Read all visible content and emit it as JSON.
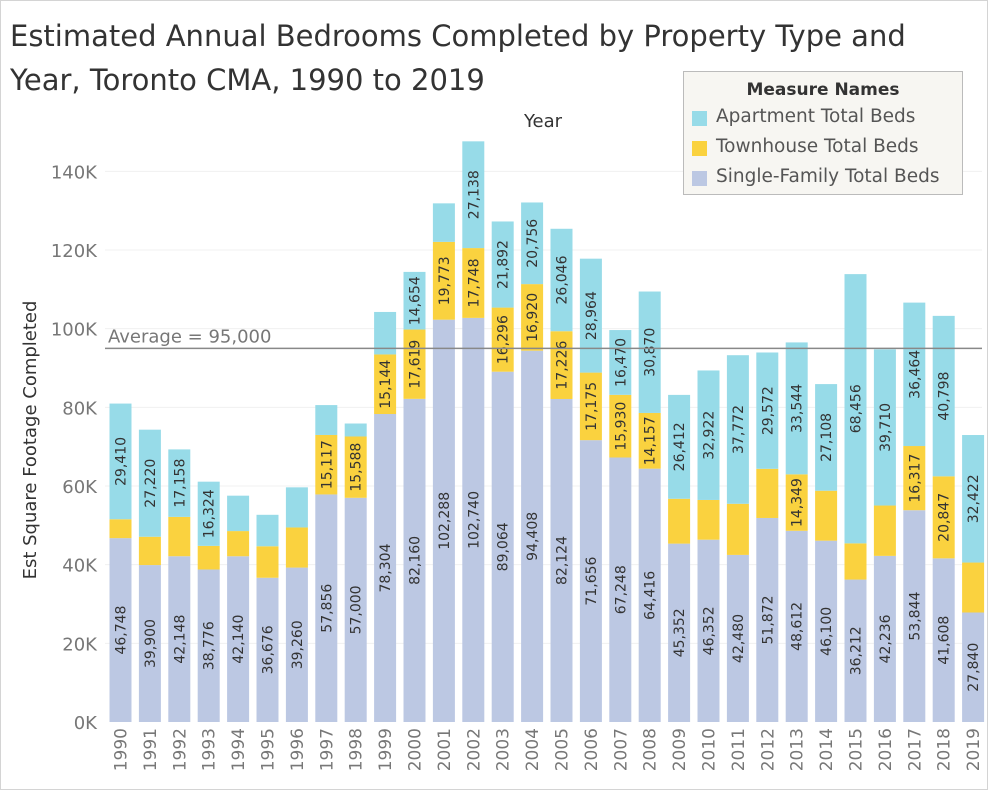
{
  "title": "Estimated Annual Bedrooms Completed by Property Type and Year, Toronto CMA, 1990 to 2019",
  "chart_data": {
    "type": "bar",
    "stacked": true,
    "title": "Estimated Annual Bedrooms Completed by Property Type and Year, Toronto CMA, 1990 to 2019",
    "xlabel": "Year",
    "ylabel": "Est Square Footage Completed",
    "ylim": [
      0,
      150000
    ],
    "yticks": [
      0,
      20000,
      40000,
      60000,
      80000,
      100000,
      120000,
      140000
    ],
    "ytick_labels": [
      "0K",
      "20K",
      "40K",
      "60K",
      "80K",
      "100K",
      "120K",
      "140K"
    ],
    "categories": [
      "1990",
      "1991",
      "1992",
      "1993",
      "1994",
      "1995",
      "1996",
      "1997",
      "1998",
      "1999",
      "2000",
      "2001",
      "2002",
      "2003",
      "2004",
      "2005",
      "2006",
      "2007",
      "2008",
      "2009",
      "2010",
      "2011",
      "2012",
      "2013",
      "2014",
      "2015",
      "2016",
      "2017",
      "2018",
      "2019"
    ],
    "series": [
      {
        "name": "Single-Family Total Beds",
        "color": "#bcc8e3",
        "values": [
          46748,
          39900,
          42148,
          38776,
          42140,
          36676,
          39260,
          57856,
          57000,
          78304,
          82160,
          102288,
          102740,
          89064,
          94408,
          82124,
          71656,
          67248,
          64416,
          45352,
          46352,
          42480,
          51872,
          48612,
          46100,
          36212,
          42236,
          53844,
          41608,
          27840
        ],
        "labels_shown": [
          true,
          true,
          true,
          true,
          true,
          true,
          true,
          true,
          true,
          true,
          true,
          true,
          true,
          true,
          true,
          true,
          true,
          true,
          true,
          true,
          true,
          true,
          true,
          true,
          true,
          true,
          true,
          true,
          true,
          true
        ]
      },
      {
        "name": "Townhouse Total Beds",
        "color": "#fad23f",
        "values": [
          4800,
          7200,
          10000,
          6000,
          6400,
          8000,
          10200,
          15117,
          15588,
          15144,
          17619,
          19773,
          17748,
          16296,
          16920,
          17226,
          17175,
          15930,
          14157,
          11400,
          10100,
          13000,
          12500,
          14349,
          12700,
          9200,
          12800,
          16317,
          20847,
          12700
        ],
        "labels_shown": [
          false,
          false,
          false,
          false,
          false,
          false,
          false,
          true,
          true,
          true,
          true,
          true,
          true,
          true,
          true,
          true,
          true,
          true,
          true,
          false,
          false,
          false,
          false,
          true,
          false,
          false,
          false,
          true,
          true,
          false
        ]
      },
      {
        "name": "Apartment Total Beds",
        "color": "#97dbe8",
        "values": [
          29410,
          27220,
          17158,
          16324,
          9000,
          8000,
          10200,
          7600,
          3300,
          10800,
          14654,
          9800,
          27138,
          21892,
          20756,
          26046,
          28964,
          16470,
          30870,
          26412,
          32922,
          37772,
          29572,
          33544,
          27108,
          68456,
          39710,
          36464,
          40798,
          32422
        ],
        "labels_shown": [
          true,
          true,
          true,
          true,
          false,
          false,
          false,
          false,
          false,
          false,
          true,
          false,
          true,
          true,
          true,
          true,
          true,
          true,
          true,
          true,
          true,
          true,
          true,
          true,
          true,
          true,
          true,
          true,
          true,
          true
        ]
      }
    ],
    "reference_line": {
      "value": 95000,
      "label": "Average = 95,000"
    },
    "legend": {
      "title": "Measure Names",
      "position": "top-right",
      "entries": [
        "Apartment Total Beds",
        "Townhouse Total Beds",
        "Single-Family Total Beds"
      ]
    },
    "grid": true
  }
}
